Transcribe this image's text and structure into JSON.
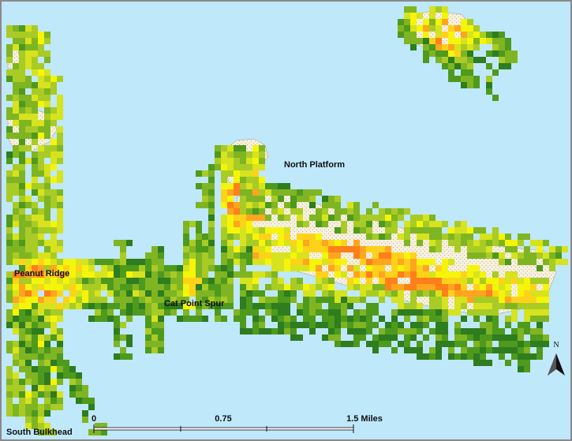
{
  "map": {
    "labels": {
      "north_platform": "North Platform",
      "peanut_ridge": "Peanut Ridge",
      "cat_point_spur": "Cat Point Spur",
      "south_bulkhead": "South Bulkhead"
    },
    "north_arrow": {
      "label": "N"
    },
    "scale_bar": {
      "tick_0": "0",
      "tick_1": "0.75",
      "tick_2": "1.5 Miles"
    },
    "colors": {
      "water": "#bfe8fb",
      "reef_fill": "#f7f1de",
      "border": "#8a8a8a",
      "ramp": [
        "#2e7d1e",
        "#4e9a1d",
        "#7fb522",
        "#a9cb25",
        "#d6e31e",
        "#f5f50a",
        "#ffd21a",
        "#ffa51f",
        "#ff7f1a"
      ]
    }
  }
}
